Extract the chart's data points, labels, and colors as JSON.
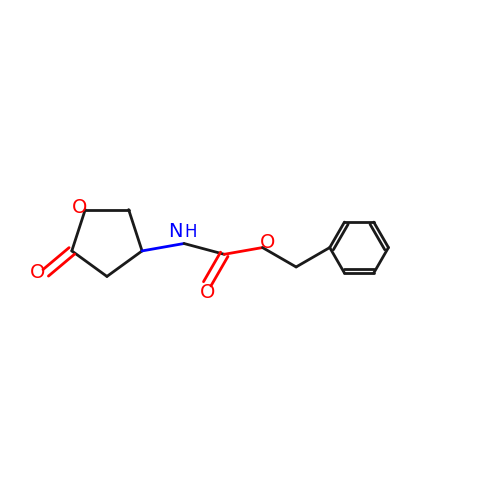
{
  "bg_color": "#ffffff",
  "bond_color": "#1a1a1a",
  "o_color": "#ff0000",
  "n_color": "#0000ff",
  "line_width": 2.0,
  "font_size": 14,
  "figsize": [
    4.79,
    4.79
  ],
  "dpi": 100,
  "xlim": [
    0,
    10
  ],
  "ylim": [
    2,
    8
  ]
}
